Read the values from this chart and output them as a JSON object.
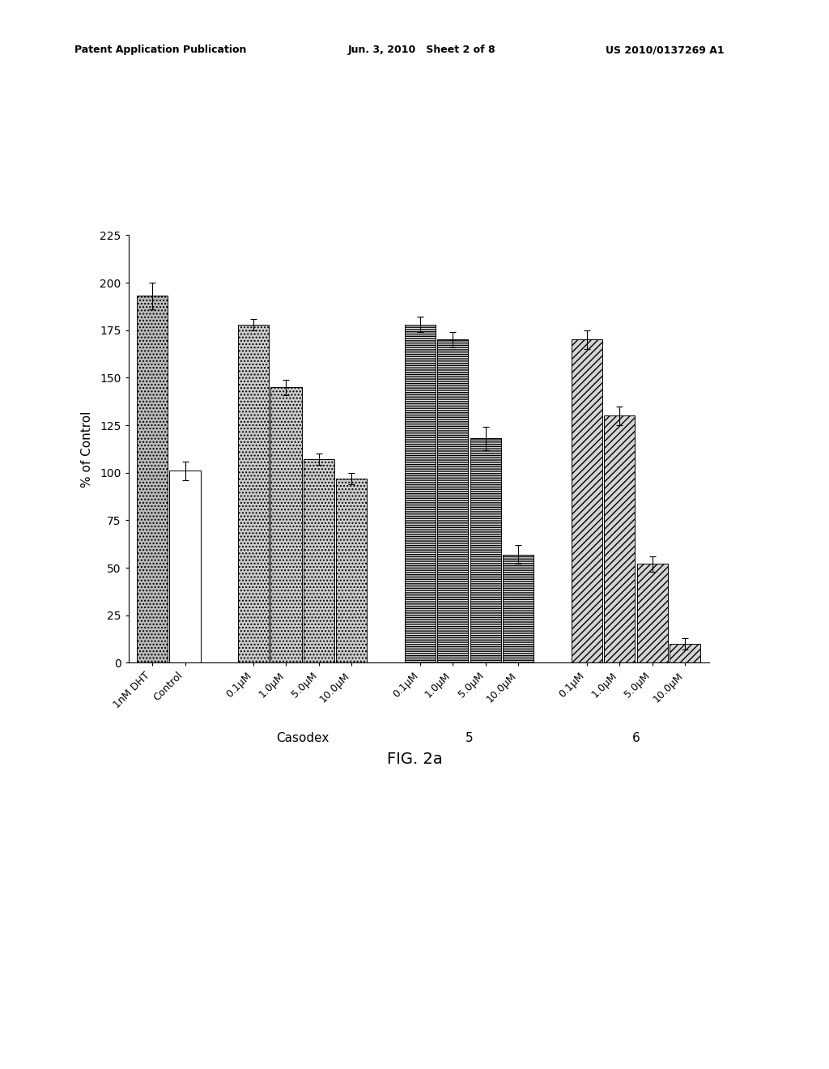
{
  "ylabel": "% of Control",
  "ylim": [
    0,
    225
  ],
  "yticks": [
    0,
    25,
    50,
    75,
    100,
    125,
    150,
    175,
    200,
    225
  ],
  "bars": [
    {
      "label": "1nM DHT",
      "value": 193,
      "error": 7,
      "pattern": "dots_sparse"
    },
    {
      "label": "Control",
      "value": 101,
      "error": 5,
      "pattern": "white"
    },
    {
      "label": "0.1μM",
      "value": 178,
      "error": 3,
      "pattern": "dots_dense"
    },
    {
      "label": "1.0μM",
      "value": 145,
      "error": 4,
      "pattern": "dots_dense"
    },
    {
      "label": "5.0μM",
      "value": 107,
      "error": 3,
      "pattern": "dots_dense"
    },
    {
      "label": "10.0μM",
      "value": 97,
      "error": 3,
      "pattern": "dots_dense"
    },
    {
      "label": "0.1μM",
      "value": 178,
      "error": 4,
      "pattern": "horiz_lines"
    },
    {
      "label": "1.0μM",
      "value": 170,
      "error": 4,
      "pattern": "horiz_lines"
    },
    {
      "label": "5.0μM",
      "value": 118,
      "error": 6,
      "pattern": "horiz_lines"
    },
    {
      "label": "10.0μM",
      "value": 57,
      "error": 5,
      "pattern": "horiz_lines"
    },
    {
      "label": "0.1μM",
      "value": 170,
      "error": 5,
      "pattern": "diag_lines"
    },
    {
      "label": "1.0μM",
      "value": 130,
      "error": 5,
      "pattern": "diag_lines"
    },
    {
      "label": "5.0μM",
      "value": 52,
      "error": 4,
      "pattern": "diag_lines"
    },
    {
      "label": "10.0μM",
      "value": 10,
      "error": 3,
      "pattern": "diag_lines"
    }
  ],
  "group_sizes": [
    2,
    4,
    4,
    4
  ],
  "group_labels": [
    "",
    "Casodex",
    "5",
    "6"
  ],
  "fig_label": "FIG. 2a",
  "header_left": "Patent Application Publication",
  "header_mid": "Jun. 3, 2010   Sheet 2 of 8",
  "header_right": "US 2010/0137269 A1",
  "background_color": "#ffffff"
}
